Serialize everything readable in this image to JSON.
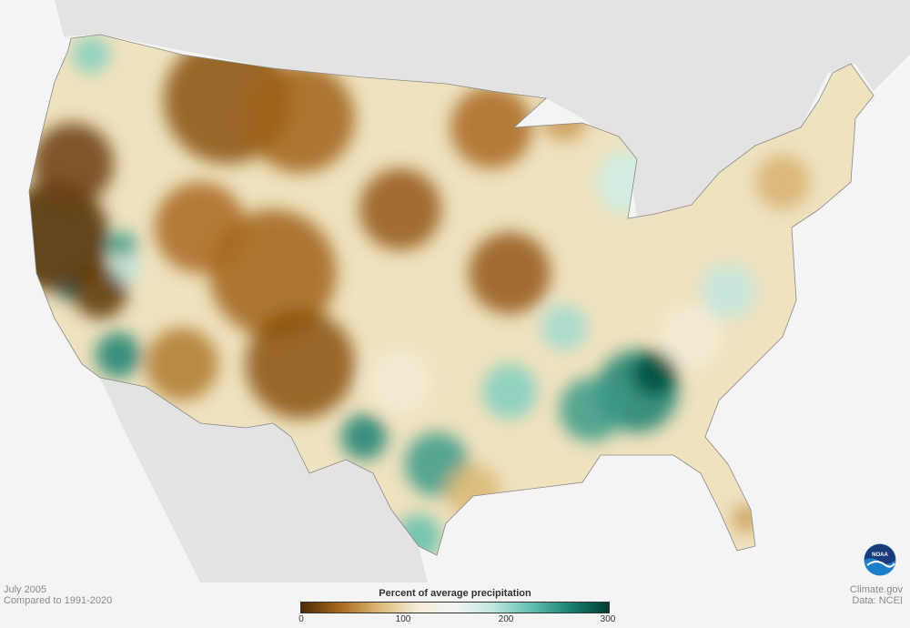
{
  "map": {
    "subject": "Percent of average precipitation, contiguous United States",
    "period": "July 2005",
    "baseline": "Compared to 1991-2020"
  },
  "footer": {
    "date": "July 2005",
    "baseline": "Compared to 1991-2020",
    "credit": "Climate.gov",
    "source": "Data: NCEI"
  },
  "legend": {
    "title": "Percent of average precipitation",
    "ticks": [
      "0",
      "100",
      "200",
      "300"
    ],
    "tick_values": [
      0,
      100,
      200,
      300
    ],
    "range": [
      0,
      300
    ],
    "colors": [
      "#4a2a05",
      "#a8691c",
      "#dbb774",
      "#f3ecd6",
      "#f4f4f4",
      "#bfe6df",
      "#5fbfae",
      "#1a8172",
      "#003d30"
    ]
  },
  "logo": {
    "text": "NOAA",
    "color": "#1a4f9c"
  }
}
